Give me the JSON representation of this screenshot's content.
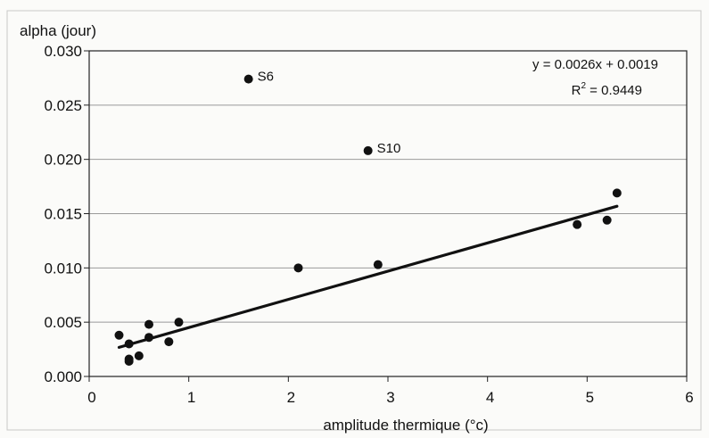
{
  "chart_data": {
    "type": "scatter",
    "ylabel": "alpha (jour)",
    "xlabel": "amplitude thermique (°c)",
    "xlim": [
      0,
      6
    ],
    "ylim": [
      0,
      0.03
    ],
    "x_ticks": [
      "0",
      "1",
      "2",
      "3",
      "4",
      "5",
      "6"
    ],
    "y_ticks": [
      "0.000",
      "0.005",
      "0.010",
      "0.015",
      "0.020",
      "0.025",
      "0.030"
    ],
    "x_tick_values": [
      0,
      1,
      2,
      3,
      4,
      5,
      6
    ],
    "y_tick_values": [
      0,
      0.005,
      0.01,
      0.015,
      0.02,
      0.025,
      0.03
    ],
    "grid": "horizontal",
    "series": [
      {
        "points": [
          {
            "x": 0.3,
            "y": 0.0038
          },
          {
            "x": 0.4,
            "y": 0.003
          },
          {
            "x": 0.4,
            "y": 0.0016
          },
          {
            "x": 0.4,
            "y": 0.0014
          },
          {
            "x": 0.5,
            "y": 0.0019
          },
          {
            "x": 0.6,
            "y": 0.0048
          },
          {
            "x": 0.6,
            "y": 0.0036
          },
          {
            "x": 0.8,
            "y": 0.0032
          },
          {
            "x": 0.9,
            "y": 0.005
          },
          {
            "x": 1.6,
            "y": 0.0274,
            "label": "S6"
          },
          {
            "x": 2.1,
            "y": 0.01
          },
          {
            "x": 2.8,
            "y": 0.0208,
            "label": "S10"
          },
          {
            "x": 2.9,
            "y": 0.0103
          },
          {
            "x": 4.9,
            "y": 0.014
          },
          {
            "x": 5.2,
            "y": 0.0144
          },
          {
            "x": 5.3,
            "y": 0.0169
          }
        ]
      }
    ],
    "trendline": {
      "slope": 0.0026,
      "intercept": 0.0019,
      "x_range": [
        0.3,
        5.3
      ],
      "equation": "y = 0.0026x + 0.0019",
      "r2_prefix": "R",
      "r2_exp": "2",
      "r2_value": " = 0.9449"
    }
  }
}
